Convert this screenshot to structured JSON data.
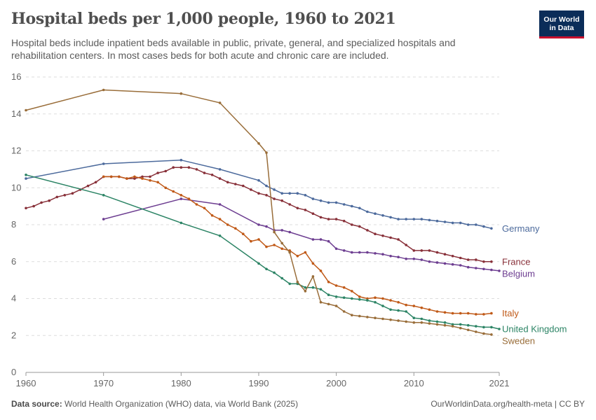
{
  "header": {
    "title": "Hospital beds per 1,000 people, 1960 to 2021",
    "subtitle": "Hospital beds include inpatient beds available in public, private, general, and specialized hospitals and rehabilitation centers. In most cases beds for both acute and chronic care are included.",
    "logo_line1": "Our World",
    "logo_line2": "in Data"
  },
  "footer": {
    "source_label": "Data source:",
    "source_text": "World Health Organization (WHO) data, via World Bank (2025)",
    "right_text": "OurWorldinData.org/health-meta | CC BY"
  },
  "chart_data": {
    "type": "line",
    "title": "Hospital beds per 1,000 people, 1960 to 2021",
    "xlabel": "",
    "ylabel": "",
    "xlim": [
      1960,
      2021
    ],
    "ylim": [
      0,
      16
    ],
    "x_ticks": [
      "1960",
      "1970",
      "1980",
      "1990",
      "2000",
      "2010",
      "2021"
    ],
    "x_tick_values": [
      1960,
      1970,
      1980,
      1990,
      2000,
      2010,
      2021
    ],
    "y_ticks": [
      "0",
      "2",
      "4",
      "6",
      "8",
      "10",
      "12",
      "14",
      "16"
    ],
    "y_tick_values": [
      0,
      2,
      4,
      6,
      8,
      10,
      12,
      14,
      16
    ],
    "grid": "horizontal dashed",
    "legend": "labels at line ends, right",
    "series": [
      {
        "name": "Germany",
        "color": "#4c6a9c",
        "points": [
          [
            1960,
            10.5
          ],
          [
            1970,
            11.3
          ],
          [
            1980,
            11.5
          ],
          [
            1985,
            11.0
          ],
          [
            1990,
            10.4
          ],
          [
            1991,
            10.1
          ],
          [
            1992,
            9.9
          ],
          [
            1993,
            9.7
          ],
          [
            1994,
            9.7
          ],
          [
            1995,
            9.7
          ],
          [
            1996,
            9.6
          ],
          [
            1997,
            9.4
          ],
          [
            1998,
            9.3
          ],
          [
            1999,
            9.2
          ],
          [
            2000,
            9.2
          ],
          [
            2001,
            9.1
          ],
          [
            2002,
            9.0
          ],
          [
            2003,
            8.9
          ],
          [
            2004,
            8.7
          ],
          [
            2005,
            8.6
          ],
          [
            2006,
            8.5
          ],
          [
            2007,
            8.4
          ],
          [
            2008,
            8.3
          ],
          [
            2009,
            8.3
          ],
          [
            2010,
            8.3
          ],
          [
            2011,
            8.3
          ],
          [
            2012,
            8.25
          ],
          [
            2013,
            8.2
          ],
          [
            2014,
            8.15
          ],
          [
            2015,
            8.1
          ],
          [
            2016,
            8.1
          ],
          [
            2017,
            8.0
          ],
          [
            2018,
            8.0
          ],
          [
            2019,
            7.9
          ],
          [
            2020,
            7.8
          ]
        ]
      },
      {
        "name": "France",
        "color": "#883039",
        "points": [
          [
            1960,
            8.9
          ],
          [
            1961,
            9.0
          ],
          [
            1962,
            9.2
          ],
          [
            1963,
            9.3
          ],
          [
            1964,
            9.5
          ],
          [
            1965,
            9.6
          ],
          [
            1966,
            9.7
          ],
          [
            1967,
            9.9
          ],
          [
            1968,
            10.1
          ],
          [
            1969,
            10.3
          ],
          [
            1970,
            10.6
          ],
          [
            1971,
            10.6
          ],
          [
            1972,
            10.6
          ],
          [
            1973,
            10.5
          ],
          [
            1974,
            10.5
          ],
          [
            1975,
            10.6
          ],
          [
            1976,
            10.6
          ],
          [
            1977,
            10.8
          ],
          [
            1978,
            10.9
          ],
          [
            1979,
            11.1
          ],
          [
            1980,
            11.1
          ],
          [
            1981,
            11.1
          ],
          [
            1982,
            11.0
          ],
          [
            1983,
            10.8
          ],
          [
            1984,
            10.7
          ],
          [
            1985,
            10.5
          ],
          [
            1986,
            10.3
          ],
          [
            1987,
            10.2
          ],
          [
            1988,
            10.1
          ],
          [
            1989,
            9.9
          ],
          [
            1990,
            9.7
          ],
          [
            1991,
            9.6
          ],
          [
            1992,
            9.4
          ],
          [
            1993,
            9.3
          ],
          [
            1994,
            9.1
          ],
          [
            1995,
            8.9
          ],
          [
            1996,
            8.8
          ],
          [
            1997,
            8.6
          ],
          [
            1998,
            8.4
          ],
          [
            1999,
            8.3
          ],
          [
            2000,
            8.3
          ],
          [
            2001,
            8.2
          ],
          [
            2002,
            8.0
          ],
          [
            2003,
            7.9
          ],
          [
            2004,
            7.7
          ],
          [
            2005,
            7.5
          ],
          [
            2006,
            7.4
          ],
          [
            2007,
            7.3
          ],
          [
            2008,
            7.2
          ],
          [
            2009,
            6.9
          ],
          [
            2010,
            6.6
          ],
          [
            2011,
            6.6
          ],
          [
            2012,
            6.6
          ],
          [
            2013,
            6.5
          ],
          [
            2014,
            6.4
          ],
          [
            2015,
            6.3
          ],
          [
            2016,
            6.2
          ],
          [
            2017,
            6.1
          ],
          [
            2018,
            6.1
          ],
          [
            2019,
            6.0
          ],
          [
            2020,
            6.0
          ]
        ]
      },
      {
        "name": "Belgium",
        "color": "#6d3e91",
        "points": [
          [
            1970,
            8.3
          ],
          [
            1980,
            9.4
          ],
          [
            1985,
            9.1
          ],
          [
            1990,
            8.0
          ],
          [
            1991,
            7.9
          ],
          [
            1992,
            7.7
          ],
          [
            1993,
            7.7
          ],
          [
            1994,
            7.6
          ],
          [
            1997,
            7.2
          ],
          [
            1998,
            7.2
          ],
          [
            1999,
            7.1
          ],
          [
            2000,
            6.7
          ],
          [
            2001,
            6.6
          ],
          [
            2002,
            6.5
          ],
          [
            2003,
            6.5
          ],
          [
            2004,
            6.5
          ],
          [
            2005,
            6.45
          ],
          [
            2006,
            6.4
          ],
          [
            2007,
            6.3
          ],
          [
            2008,
            6.25
          ],
          [
            2009,
            6.15
          ],
          [
            2010,
            6.15
          ],
          [
            2011,
            6.1
          ],
          [
            2012,
            6.0
          ],
          [
            2013,
            5.95
          ],
          [
            2014,
            5.9
          ],
          [
            2015,
            5.85
          ],
          [
            2016,
            5.8
          ],
          [
            2017,
            5.7
          ],
          [
            2018,
            5.65
          ],
          [
            2019,
            5.6
          ],
          [
            2020,
            5.55
          ],
          [
            2021,
            5.5
          ]
        ]
      },
      {
        "name": "Italy",
        "color": "#c05917",
        "points": [
          [
            1970,
            10.6
          ],
          [
            1971,
            10.6
          ],
          [
            1972,
            10.6
          ],
          [
            1973,
            10.5
          ],
          [
            1974,
            10.6
          ],
          [
            1975,
            10.5
          ],
          [
            1976,
            10.4
          ],
          [
            1977,
            10.3
          ],
          [
            1978,
            10.0
          ],
          [
            1979,
            9.8
          ],
          [
            1980,
            9.6
          ],
          [
            1981,
            9.4
          ],
          [
            1982,
            9.1
          ],
          [
            1983,
            8.9
          ],
          [
            1984,
            8.5
          ],
          [
            1985,
            8.3
          ],
          [
            1986,
            8.0
          ],
          [
            1987,
            7.8
          ],
          [
            1988,
            7.5
          ],
          [
            1989,
            7.1
          ],
          [
            1990,
            7.2
          ],
          [
            1991,
            6.8
          ],
          [
            1992,
            6.9
          ],
          [
            1993,
            6.7
          ],
          [
            1994,
            6.6
          ],
          [
            1995,
            6.3
          ],
          [
            1996,
            6.5
          ],
          [
            1997,
            5.9
          ],
          [
            1998,
            5.5
          ],
          [
            1999,
            4.9
          ],
          [
            2000,
            4.7
          ],
          [
            2001,
            4.6
          ],
          [
            2002,
            4.4
          ],
          [
            2003,
            4.1
          ],
          [
            2004,
            4.0
          ],
          [
            2005,
            4.05
          ],
          [
            2006,
            4.0
          ],
          [
            2007,
            3.9
          ],
          [
            2008,
            3.8
          ],
          [
            2009,
            3.65
          ],
          [
            2010,
            3.6
          ],
          [
            2011,
            3.5
          ],
          [
            2012,
            3.4
          ],
          [
            2013,
            3.3
          ],
          [
            2014,
            3.25
          ],
          [
            2015,
            3.2
          ],
          [
            2016,
            3.2
          ],
          [
            2017,
            3.2
          ],
          [
            2018,
            3.15
          ],
          [
            2019,
            3.15
          ],
          [
            2020,
            3.2
          ]
        ]
      },
      {
        "name": "United Kingdom",
        "color": "#2c8465",
        "points": [
          [
            1960,
            10.7
          ],
          [
            1970,
            9.6
          ],
          [
            1980,
            8.1
          ],
          [
            1985,
            7.4
          ],
          [
            1990,
            5.9
          ],
          [
            1991,
            5.6
          ],
          [
            1992,
            5.4
          ],
          [
            1993,
            5.1
          ],
          [
            1994,
            4.8
          ],
          [
            1995,
            4.8
          ],
          [
            1996,
            4.6
          ],
          [
            1997,
            4.6
          ],
          [
            1998,
            4.5
          ],
          [
            1999,
            4.2
          ],
          [
            2000,
            4.1
          ],
          [
            2001,
            4.05
          ],
          [
            2002,
            4.0
          ],
          [
            2003,
            3.95
          ],
          [
            2004,
            3.9
          ],
          [
            2005,
            3.8
          ],
          [
            2006,
            3.6
          ],
          [
            2007,
            3.4
          ],
          [
            2008,
            3.35
          ],
          [
            2009,
            3.3
          ],
          [
            2010,
            2.95
          ],
          [
            2011,
            2.9
          ],
          [
            2012,
            2.8
          ],
          [
            2013,
            2.75
          ],
          [
            2014,
            2.7
          ],
          [
            2015,
            2.6
          ],
          [
            2016,
            2.6
          ],
          [
            2017,
            2.55
          ],
          [
            2018,
            2.5
          ],
          [
            2019,
            2.45
          ],
          [
            2020,
            2.45
          ],
          [
            2021,
            2.35
          ]
        ]
      },
      {
        "name": "Sweden",
        "color": "#996d39",
        "points": [
          [
            1960,
            14.2
          ],
          [
            1970,
            15.3
          ],
          [
            1980,
            15.1
          ],
          [
            1985,
            14.6
          ],
          [
            1990,
            12.4
          ],
          [
            1991,
            11.9
          ],
          [
            1992,
            7.6
          ],
          [
            1993,
            7.0
          ],
          [
            1994,
            6.5
          ],
          [
            1995,
            4.9
          ],
          [
            1996,
            4.4
          ],
          [
            1997,
            5.2
          ],
          [
            1998,
            3.8
          ],
          [
            1999,
            3.7
          ],
          [
            2000,
            3.6
          ],
          [
            2001,
            3.3
          ],
          [
            2002,
            3.1
          ],
          [
            2003,
            3.05
          ],
          [
            2004,
            3.0
          ],
          [
            2005,
            2.95
          ],
          [
            2006,
            2.9
          ],
          [
            2007,
            2.85
          ],
          [
            2008,
            2.8
          ],
          [
            2009,
            2.75
          ],
          [
            2010,
            2.7
          ],
          [
            2011,
            2.7
          ],
          [
            2012,
            2.65
          ],
          [
            2013,
            2.6
          ],
          [
            2014,
            2.55
          ],
          [
            2015,
            2.5
          ],
          [
            2016,
            2.4
          ],
          [
            2017,
            2.3
          ],
          [
            2018,
            2.2
          ],
          [
            2019,
            2.1
          ],
          [
            2020,
            2.05
          ]
        ]
      }
    ]
  }
}
